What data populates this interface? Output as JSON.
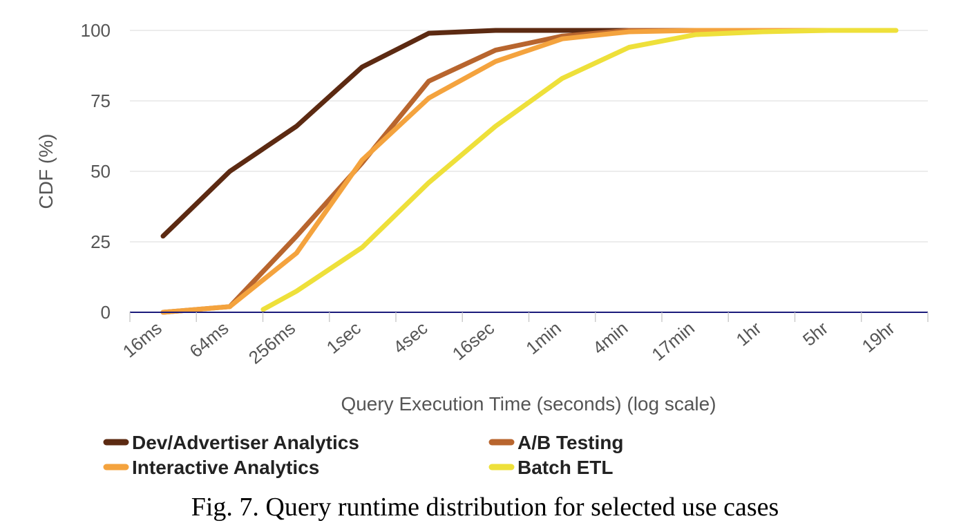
{
  "caption": "Fig. 7.  Query runtime distribution for selected use cases",
  "chart_data": {
    "type": "line",
    "xlabel": "Query Execution Time (seconds) (log scale)",
    "ylabel": "CDF (%)",
    "x_scale": "log2",
    "categories": [
      "16ms",
      "64ms",
      "256ms",
      "1sec",
      "4sec",
      "16sec",
      "1min",
      "4min",
      "17min",
      "1hr",
      "5hr",
      "19hr"
    ],
    "x_seconds": [
      0.016,
      0.064,
      0.256,
      1,
      4,
      16,
      64,
      256,
      1024,
      4096,
      16384,
      65536
    ],
    "yticks": [
      0,
      25,
      50,
      75,
      100
    ],
    "ylim": [
      0,
      100
    ],
    "grid": "horizontal",
    "legend_position": "bottom",
    "series": [
      {
        "name": "Dev/Advertiser Analytics",
        "color": "#5C2A12",
        "points": [
          [
            0.016,
            27
          ],
          [
            0.064,
            50
          ],
          [
            0.256,
            66
          ],
          [
            1,
            87
          ],
          [
            4,
            99
          ],
          [
            16,
            100
          ],
          [
            64,
            100
          ],
          [
            256,
            100
          ],
          [
            1024,
            100
          ],
          [
            4096,
            100
          ],
          [
            16384,
            100
          ]
        ]
      },
      {
        "name": "A/B Testing",
        "color": "#B8652E",
        "points": [
          [
            0.016,
            0
          ],
          [
            0.064,
            2
          ],
          [
            0.256,
            27
          ],
          [
            1,
            53
          ],
          [
            4,
            82
          ],
          [
            16,
            93
          ],
          [
            64,
            98
          ],
          [
            256,
            100
          ],
          [
            1024,
            100
          ],
          [
            4096,
            100
          ],
          [
            16384,
            100
          ]
        ]
      },
      {
        "name": "Interactive Analytics",
        "color": "#F4A33E",
        "points": [
          [
            0.016,
            0
          ],
          [
            0.064,
            2
          ],
          [
            0.256,
            21
          ],
          [
            1,
            54
          ],
          [
            4,
            76
          ],
          [
            16,
            89
          ],
          [
            64,
            97
          ],
          [
            256,
            99.5
          ],
          [
            1024,
            100
          ],
          [
            4096,
            100
          ],
          [
            16384,
            100
          ]
        ]
      },
      {
        "name": "Batch ETL",
        "color": "#EEE03A",
        "points": [
          [
            0.128,
            1
          ],
          [
            0.256,
            7.5
          ],
          [
            1,
            23
          ],
          [
            4,
            46
          ],
          [
            16,
            66
          ],
          [
            64,
            83
          ],
          [
            256,
            94
          ],
          [
            1024,
            98.5
          ],
          [
            4096,
            99.5
          ],
          [
            16384,
            100
          ],
          [
            65536,
            100
          ]
        ]
      }
    ]
  }
}
